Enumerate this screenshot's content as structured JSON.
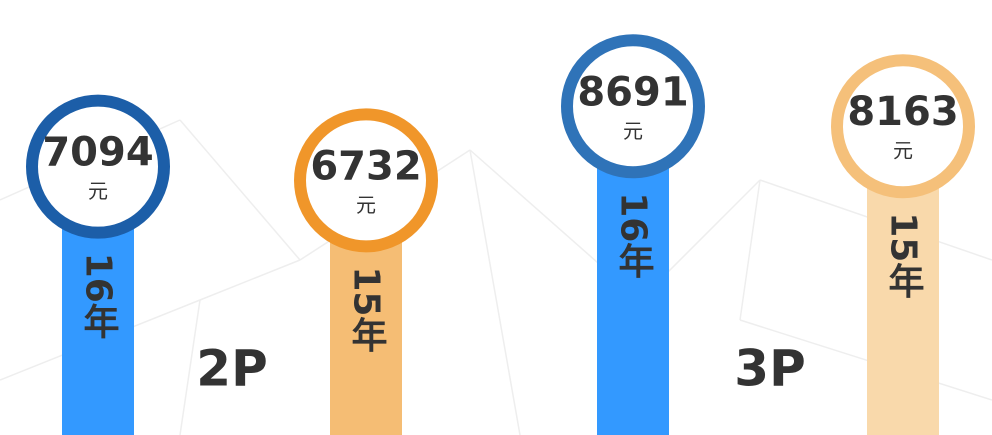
{
  "chart_data": {
    "type": "bar",
    "categories": [
      "16年",
      "15年",
      "16年",
      "15年"
    ],
    "values": [
      7094,
      6732,
      8691,
      8163
    ],
    "unit": "元",
    "colors": [
      "#3399ff",
      "#f5bd74",
      "#3399ff",
      "#f9d9ab"
    ],
    "ring_colors": [
      "#1c5ea8",
      "#f0962a",
      "#2f73b8",
      "#f5c07a"
    ],
    "groups": [
      "2P",
      "3P"
    ],
    "ylim": [
      0,
      11500
    ]
  }
}
